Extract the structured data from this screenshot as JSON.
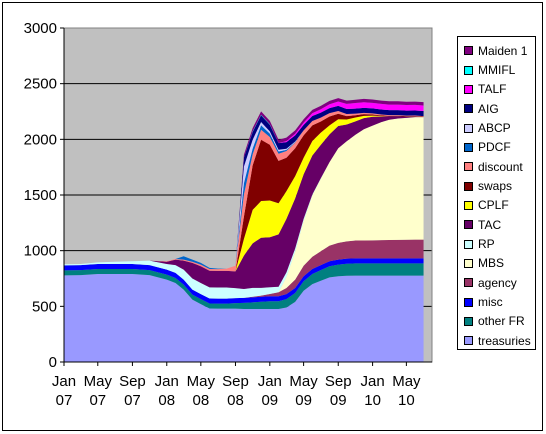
{
  "chart_data": {
    "type": "area",
    "stacked": true,
    "title": "",
    "xlabel": "",
    "ylabel": "",
    "ylim": [
      0,
      3000
    ],
    "yticks": [
      0,
      500,
      1000,
      1500,
      2000,
      2500,
      3000
    ],
    "x_tick_labels": [
      {
        "month": "Jan",
        "year": "07"
      },
      {
        "month": "May",
        "year": "07"
      },
      {
        "month": "Sep",
        "year": "07"
      },
      {
        "month": "Jan",
        "year": "08"
      },
      {
        "month": "May",
        "year": "08"
      },
      {
        "month": "Sep",
        "year": "08"
      },
      {
        "month": "Jan",
        "year": "09"
      },
      {
        "month": "May",
        "year": "09"
      },
      {
        "month": "Sep",
        "year": "09"
      },
      {
        "month": "Jan",
        "year": "10"
      },
      {
        "month": "May",
        "year": "10"
      }
    ],
    "plot_background": "#c0c0c0",
    "gridlines": "horizontal",
    "legend_position": "right",
    "x": [
      "2007-01",
      "2007-03",
      "2007-05",
      "2007-07",
      "2007-09",
      "2007-11",
      "2008-01",
      "2008-02",
      "2008-03",
      "2008-04",
      "2008-05",
      "2008-06",
      "2008-07",
      "2008-08",
      "2008-09",
      "2008-10",
      "2008-11",
      "2008-12",
      "2009-01",
      "2009-02",
      "2009-03",
      "2009-04",
      "2009-05",
      "2009-06",
      "2009-07",
      "2009-08",
      "2009-09",
      "2009-10",
      "2009-11",
      "2009-12",
      "2010-01",
      "2010-02",
      "2010-03",
      "2010-04",
      "2010-05",
      "2010-06",
      "2010-07"
    ],
    "series": [
      {
        "name": "treasuries",
        "color": "#9999ff",
        "values": [
          778,
          780,
          790,
          790,
          790,
          780,
          740,
          710,
          650,
          560,
          520,
          480,
          479,
          479,
          479,
          476,
          476,
          476,
          476,
          476,
          490,
          540,
          640,
          700,
          730,
          760,
          770,
          775,
          776,
          776,
          776,
          776,
          776,
          776,
          776,
          776,
          776
        ]
      },
      {
        "name": "other FR",
        "color": "#008080",
        "values": [
          45,
          45,
          45,
          45,
          45,
          45,
          45,
          45,
          45,
          45,
          45,
          45,
          45,
          45,
          50,
          55,
          60,
          65,
          70,
          70,
          75,
          80,
          85,
          90,
          95,
          100,
          105,
          108,
          110,
          110,
          110,
          110,
          110,
          110,
          110,
          110,
          110
        ]
      },
      {
        "name": "misc",
        "color": "#0000ff",
        "values": [
          45,
          45,
          45,
          45,
          45,
          45,
          45,
          45,
          45,
          45,
          45,
          45,
          45,
          45,
          45,
          45,
          45,
          45,
          45,
          45,
          45,
          45,
          45,
          45,
          45,
          45,
          45,
          45,
          45,
          45,
          45,
          45,
          45,
          45,
          45,
          45,
          45
        ]
      },
      {
        "name": "agency",
        "color": "#993366",
        "values": [
          0,
          0,
          0,
          0,
          0,
          0,
          0,
          0,
          0,
          0,
          0,
          0,
          0,
          0,
          0,
          0,
          5,
          10,
          20,
          35,
          55,
          75,
          95,
          110,
          125,
          140,
          150,
          155,
          160,
          160,
          162,
          164,
          165,
          166,
          167,
          168,
          168
        ]
      },
      {
        "name": "MBS",
        "color": "#ffffcc",
        "values": [
          0,
          0,
          0,
          0,
          0,
          0,
          0,
          0,
          0,
          0,
          0,
          0,
          0,
          0,
          0,
          0,
          0,
          0,
          0,
          0,
          100,
          250,
          400,
          550,
          650,
          750,
          850,
          900,
          950,
          1000,
          1030,
          1060,
          1080,
          1090,
          1095,
          1100,
          1100
        ]
      },
      {
        "name": "RP",
        "color": "#ccffff",
        "values": [
          10,
          10,
          15,
          20,
          25,
          40,
          50,
          70,
          90,
          100,
          100,
          100,
          100,
          100,
          90,
          80,
          80,
          70,
          60,
          50,
          40,
          30,
          20,
          10,
          5,
          0,
          0,
          0,
          0,
          0,
          0,
          0,
          0,
          0,
          0,
          0,
          0
        ]
      },
      {
        "name": "TAC",
        "color": "#660066",
        "values": [
          0,
          0,
          0,
          0,
          0,
          0,
          20,
          50,
          80,
          140,
          150,
          150,
          150,
          150,
          150,
          300,
          400,
          450,
          450,
          470,
          480,
          450,
          400,
          350,
          300,
          250,
          200,
          150,
          120,
          100,
          80,
          50,
          30,
          20,
          10,
          5,
          0
        ]
      },
      {
        "name": "CPLF",
        "color": "#ffff00",
        "values": [
          0,
          0,
          0,
          0,
          0,
          0,
          0,
          0,
          0,
          0,
          0,
          0,
          0,
          0,
          0,
          150,
          300,
          330,
          330,
          280,
          250,
          200,
          150,
          130,
          110,
          80,
          60,
          45,
          35,
          20,
          10,
          5,
          0,
          0,
          0,
          0,
          0
        ]
      },
      {
        "name": "swaps",
        "color": "#800000",
        "values": [
          0,
          0,
          0,
          0,
          0,
          0,
          0,
          0,
          0,
          0,
          0,
          0,
          0,
          0,
          0,
          200,
          400,
          550,
          500,
          380,
          300,
          250,
          200,
          140,
          100,
          80,
          50,
          30,
          20,
          15,
          10,
          5,
          5,
          5,
          5,
          5,
          5
        ]
      },
      {
        "name": "discount",
        "color": "#ff8080",
        "values": [
          0,
          0,
          0,
          0,
          0,
          0,
          5,
          5,
          10,
          10,
          15,
          15,
          15,
          20,
          50,
          200,
          100,
          90,
          70,
          65,
          60,
          50,
          45,
          40,
          35,
          30,
          25,
          20,
          15,
          12,
          10,
          8,
          6,
          5,
          5,
          5,
          5
        ]
      },
      {
        "name": "PDCF",
        "color": "#0066cc",
        "values": [
          0,
          0,
          0,
          0,
          0,
          0,
          0,
          0,
          30,
          20,
          15,
          10,
          5,
          0,
          0,
          100,
          50,
          40,
          30,
          20,
          10,
          5,
          0,
          0,
          0,
          0,
          0,
          0,
          0,
          0,
          0,
          0,
          0,
          0,
          0,
          0,
          0
        ]
      },
      {
        "name": "ABCP",
        "color": "#ccccff",
        "values": [
          0,
          0,
          0,
          0,
          0,
          0,
          0,
          0,
          0,
          0,
          0,
          0,
          0,
          0,
          0,
          150,
          80,
          30,
          20,
          15,
          10,
          5,
          0,
          0,
          0,
          0,
          0,
          0,
          0,
          0,
          0,
          0,
          0,
          0,
          0,
          0,
          0
        ]
      },
      {
        "name": "AIG",
        "color": "#000080",
        "values": [
          0,
          0,
          0,
          0,
          0,
          0,
          0,
          0,
          0,
          0,
          0,
          0,
          0,
          0,
          0,
          80,
          70,
          60,
          60,
          60,
          60,
          55,
          50,
          45,
          45,
          45,
          45,
          45,
          45,
          45,
          45,
          45,
          45,
          45,
          45,
          45,
          45
        ]
      },
      {
        "name": "TALF",
        "color": "#ff00ff",
        "values": [
          0,
          0,
          0,
          0,
          0,
          0,
          0,
          0,
          0,
          0,
          0,
          0,
          0,
          0,
          0,
          0,
          0,
          0,
          0,
          0,
          10,
          15,
          20,
          25,
          30,
          35,
          40,
          45,
          50,
          50,
          50,
          50,
          50,
          50,
          50,
          50,
          50
        ]
      },
      {
        "name": "MMIFL",
        "color": "#00ffff",
        "values": [
          0,
          0,
          0,
          0,
          0,
          0,
          0,
          0,
          0,
          0,
          0,
          0,
          0,
          0,
          0,
          0,
          5,
          5,
          5,
          0,
          0,
          0,
          0,
          0,
          0,
          0,
          0,
          0,
          0,
          0,
          0,
          0,
          0,
          0,
          0,
          0,
          0
        ]
      },
      {
        "name": "Maiden 1",
        "color": "#800080",
        "values": [
          0,
          0,
          0,
          0,
          0,
          0,
          0,
          0,
          0,
          0,
          0,
          0,
          0,
          0,
          0,
          25,
          30,
          30,
          30,
          30,
          30,
          30,
          30,
          30,
          30,
          30,
          30,
          30,
          30,
          30,
          30,
          30,
          30,
          30,
          30,
          30,
          30
        ]
      }
    ]
  }
}
